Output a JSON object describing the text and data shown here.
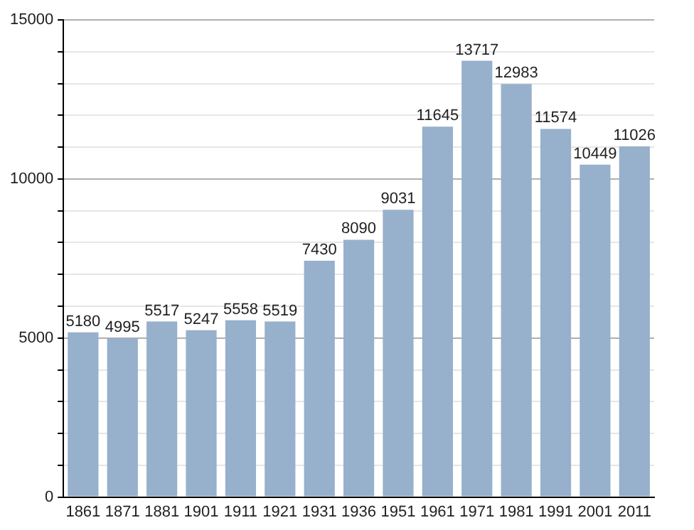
{
  "chart_data": {
    "type": "bar",
    "categories": [
      "1861",
      "1871",
      "1881",
      "1901",
      "1911",
      "1921",
      "1931",
      "1936",
      "1951",
      "1961",
      "1971",
      "1981",
      "1991",
      "2001",
      "2011"
    ],
    "values": [
      5180,
      4995,
      5517,
      5247,
      5558,
      5519,
      7430,
      8090,
      9031,
      11645,
      13717,
      12983,
      11574,
      10449,
      11026
    ],
    "color": "#97b0cb",
    "ylim": [
      0,
      15000
    ],
    "yticks": [
      0,
      {
        "value": 1000,
        "label": null
      },
      {
        "value": 2000,
        "label": null
      },
      {
        "value": 3000,
        "label": null
      },
      {
        "value": 4000,
        "label": null
      },
      5000,
      {
        "value": 6000,
        "label": null
      },
      {
        "value": 7000,
        "label": null
      },
      {
        "value": 8000,
        "label": null
      },
      {
        "value": 9000,
        "label": null
      },
      10000,
      {
        "value": 11000,
        "label": null
      },
      {
        "value": 12000,
        "label": null
      },
      {
        "value": 13000,
        "label": null
      },
      {
        "value": 14000,
        "label": null
      },
      15000
    ],
    "grid": "y",
    "data_labels": true
  }
}
